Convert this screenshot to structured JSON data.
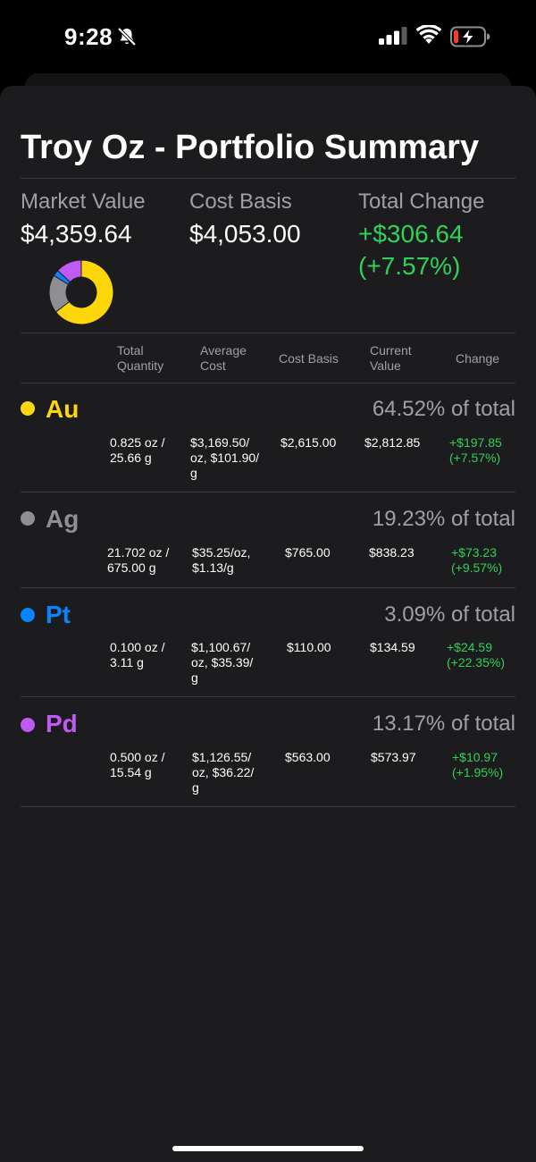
{
  "status_bar": {
    "time": "9:28",
    "icons": [
      "bell-slash-icon",
      "signal-icon",
      "wifi-icon",
      "battery-charging-icon"
    ]
  },
  "title": "Troy Oz - Portfolio Summary",
  "summary": {
    "market_value_label": "Market Value",
    "market_value": "$4,359.64",
    "cost_basis_label": "Cost Basis",
    "cost_basis": "$4,053.00",
    "total_change_label": "Total Change",
    "total_change": "+$306.64",
    "total_change_pct": "(+7.57%)"
  },
  "colors": {
    "gold": "#ffd60a",
    "silver": "#8e8e93",
    "platinum": "#0a84ff",
    "palladium": "#bf5af2",
    "positive": "#30d158"
  },
  "chart_data": {
    "type": "pie",
    "slices": [
      {
        "label": "Au",
        "value": 64.52
      },
      {
        "label": "Ag",
        "value": 19.23
      },
      {
        "label": "Pt",
        "value": 3.09
      },
      {
        "label": "Pd",
        "value": 13.17
      }
    ]
  },
  "columns": {
    "total_quantity": [
      "Total",
      "Quantity"
    ],
    "average_cost": [
      "Average",
      "Cost"
    ],
    "cost_basis": "Cost Basis",
    "current_value": [
      "Current",
      "Value"
    ],
    "change": "Change"
  },
  "metals": [
    {
      "symbol": "Au",
      "percent": "64.52% of total",
      "quantity": [
        "0.825 oz /",
        "25.66 g"
      ],
      "average_cost": [
        "$3,169.50/",
        "oz, $101.90/",
        "g"
      ],
      "cost_basis": "$2,615.00",
      "current_value": "$2,812.85",
      "change": [
        "+$197.85",
        "(+7.57%)"
      ]
    },
    {
      "symbol": "Ag",
      "percent": "19.23% of total",
      "quantity": [
        "21.702 oz /",
        "675.00 g"
      ],
      "average_cost": [
        "$35.25/oz,",
        "$1.13/g"
      ],
      "cost_basis": "$765.00",
      "current_value": "$838.23",
      "change": [
        "+$73.23",
        "(+9.57%)"
      ]
    },
    {
      "symbol": "Pt",
      "percent": "3.09% of total",
      "quantity": [
        "0.100 oz /",
        "3.11 g"
      ],
      "average_cost": [
        "$1,100.67/",
        "oz, $35.39/",
        "g"
      ],
      "cost_basis": "$110.00",
      "current_value": "$134.59",
      "change": [
        "+$24.59",
        "(+22.35%)"
      ]
    },
    {
      "symbol": "Pd",
      "percent": "13.17% of total",
      "quantity": [
        "0.500 oz /",
        "15.54 g"
      ],
      "average_cost": [
        "$1,126.55/",
        "oz, $36.22/",
        "g"
      ],
      "cost_basis": "$563.00",
      "current_value": "$573.97",
      "change": [
        "+$10.97",
        "(+1.95%)"
      ]
    }
  ]
}
